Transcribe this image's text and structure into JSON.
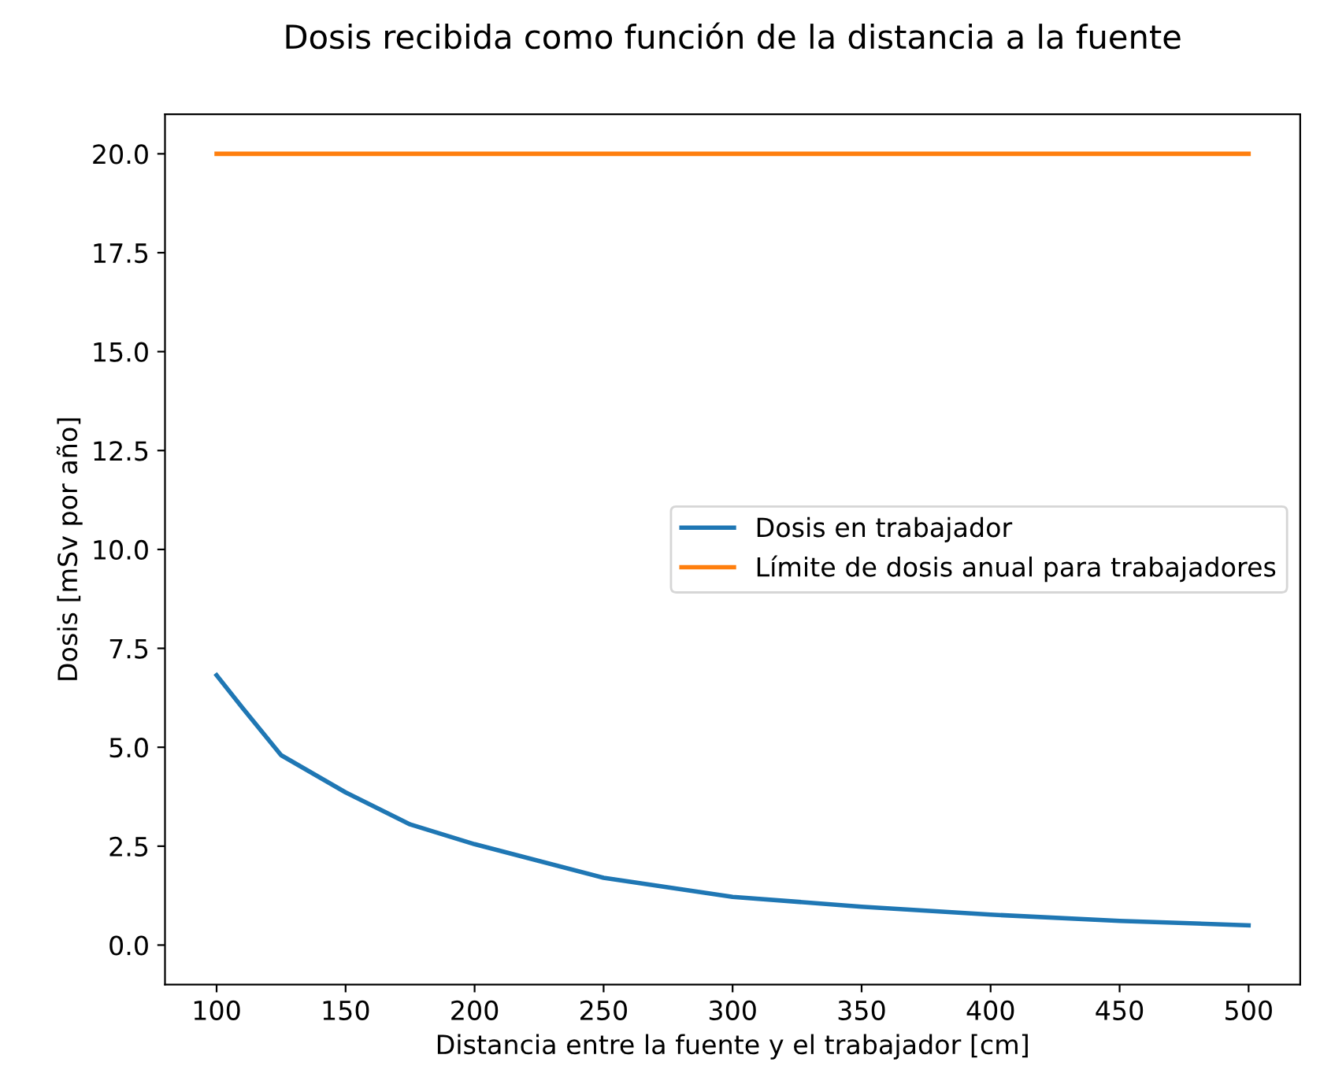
{
  "chart_data": {
    "type": "line",
    "title": "Dosis recibida como función de la distancia a la fuente",
    "xlabel": "Distancia entre la fuente y el trabajador [cm]",
    "ylabel": "Dosis [mSv por año]",
    "xlim": [
      80,
      520
    ],
    "ylim": [
      -1,
      21
    ],
    "xticks": [
      100,
      150,
      200,
      250,
      300,
      350,
      400,
      450,
      500
    ],
    "yticks": [
      {
        "value": 0,
        "label": "0.0"
      },
      {
        "value": 2.5,
        "label": "2.5"
      },
      {
        "value": 5,
        "label": "5.0"
      },
      {
        "value": 7.5,
        "label": "7.5"
      },
      {
        "value": 10,
        "label": "10.0"
      },
      {
        "value": 12.5,
        "label": "12.5"
      },
      {
        "value": 15,
        "label": "15.0"
      },
      {
        "value": 17.5,
        "label": "17.5"
      },
      {
        "value": 20,
        "label": "20.0"
      }
    ],
    "legend": "right",
    "grid": false,
    "series": [
      {
        "name": "Dosis en trabajador",
        "color": "#1f77b4",
        "x": [
          100,
          110,
          125,
          150,
          175,
          200,
          250,
          300,
          350,
          400,
          450,
          500
        ],
        "values": [
          6.82,
          6.0,
          4.8,
          3.86,
          3.05,
          2.55,
          1.7,
          1.22,
          0.97,
          0.77,
          0.61,
          0.5
        ]
      },
      {
        "name": "Límite de dosis anual para trabajadores",
        "color": "#ff7f0e",
        "x": [
          100,
          500
        ],
        "values": [
          20,
          20
        ]
      }
    ]
  }
}
